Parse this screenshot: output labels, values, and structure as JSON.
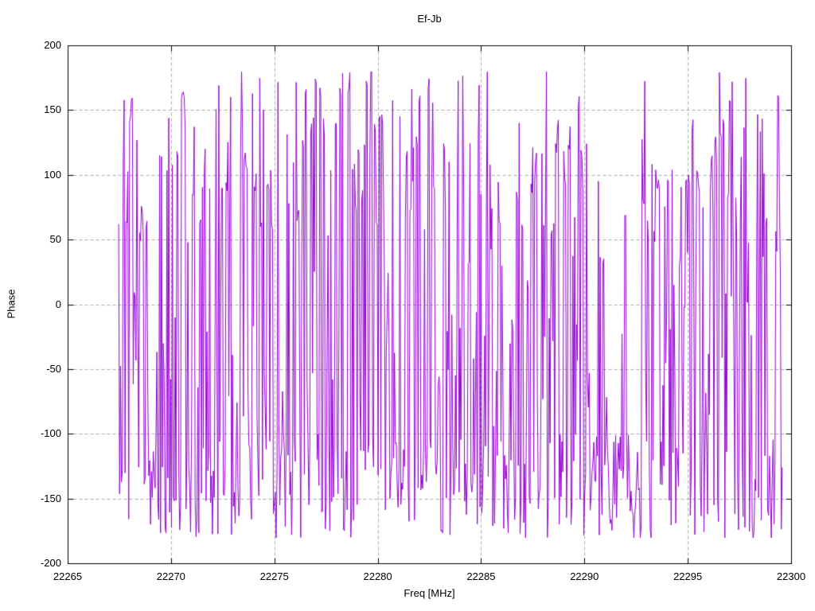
{
  "chart_data": {
    "type": "line",
    "title": "Ef-Jb",
    "xlabel": "Freq [MHz]",
    "ylabel": "Phase",
    "xlim": [
      22265,
      22300
    ],
    "ylim": [
      -200,
      200
    ],
    "xticks": [
      22265,
      22270,
      22275,
      22280,
      22285,
      22290,
      22295,
      22300
    ],
    "xtick_labels": [
      "22265",
      "22270",
      "22275",
      "22280",
      "22285",
      "22290",
      "22295",
      "22300"
    ],
    "yticks": [
      -200,
      -150,
      -100,
      -50,
      0,
      50,
      100,
      150,
      200
    ],
    "ytick_labels": [
      "-200",
      "-150",
      "-100",
      "-50",
      "0",
      "50",
      "100",
      "150",
      "200"
    ],
    "grid": true,
    "grid_style": "dashed",
    "legend": false,
    "description": "Fringe phase vs frequency for baseline Ef-Jb; phase wraps between -180 and +180 deg producing dense vertical excursions, with the trace clustered between -100 and -180 and frequent spikes up to +180.",
    "series": [
      {
        "name": "Ef-Jb phase",
        "color": "#9400d3",
        "x_start": 22267.45,
        "x_end": 22299.55,
        "y_min": -180,
        "y_max": 180
      }
    ],
    "generator": {
      "seed": 1337,
      "n_points": 730,
      "x_start": 22267.45,
      "x_end": 22299.55,
      "clip": [
        -180,
        180
      ],
      "low_band": [
        -181,
        -100
      ],
      "mid_band": [
        -100,
        0
      ],
      "up_band": [
        0,
        183
      ],
      "up_prob": 0.32,
      "mid_prob": 0.16,
      "up_bias_pow": 0.65,
      "cap_pair_prob": 0.35,
      "cap_jitter": 8,
      "sparse_regions": [
        {
          "center": 22268.9,
          "half_width": 0.25,
          "up_prob": 0.15
        },
        {
          "center": 22283.4,
          "half_width": 0.35,
          "up_prob": 0.12
        },
        {
          "center": 22286.6,
          "half_width": 0.6,
          "up_prob": 0.1
        },
        {
          "center": 22291.75,
          "half_width": 0.95,
          "up_prob": 0.05
        }
      ]
    },
    "colors": {
      "line": "#9400d3",
      "grid": "#a9a9a9",
      "border": "#000000",
      "text": "#000000",
      "background": "#ffffff"
    }
  }
}
